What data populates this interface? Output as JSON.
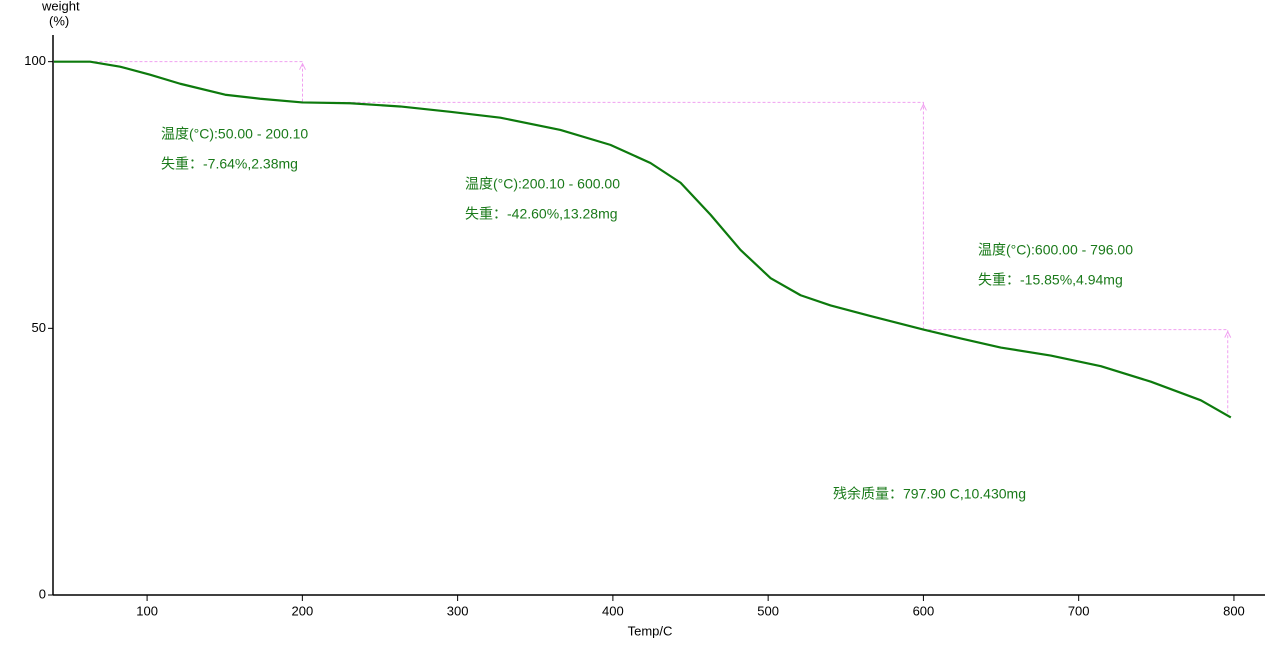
{
  "chart_data": {
    "type": "line",
    "ylabel": [
      "weight",
      "(%)"
    ],
    "xlabel": "Temp/C",
    "x": [
      40,
      63.3,
      82.6,
      101.9,
      121.3,
      150.3,
      172.8,
      200,
      230.8,
      263,
      295.3,
      327.5,
      366.2,
      398.4,
      424.2,
      443.6,
      462.9,
      482.2,
      501.6,
      520.9,
      540.2,
      566,
      600,
      624,
      649.8,
      682,
      714.3,
      746.5,
      778.7,
      798
    ],
    "series": [
      {
        "color": "#0d7a0d",
        "values": [
          100,
          100,
          99.06,
          97.56,
          95.86,
          93.8,
          93.05,
          92.36,
          92.2,
          91.6,
          90.6,
          89.5,
          87.2,
          84.4,
          81,
          77.3,
          71.3,
          64.7,
          59.4,
          56.2,
          54.3,
          52.3,
          49.76,
          48.1,
          46.4,
          44.9,
          42.9,
          40,
          36.5,
          33.3
        ]
      }
    ],
    "xlim": [
      39.4,
      820
    ],
    "ylim": [
      0,
      105
    ],
    "xticks": [
      100,
      200,
      300,
      400,
      500,
      600,
      700,
      800
    ],
    "yticks": [
      0,
      50,
      100
    ],
    "step_color": "#f0a0f0",
    "annotations": [
      {
        "lines": [
          "温度(°C):50.00 - 200.10",
          "失重：-7.64%,2.38mg"
        ],
        "x": [
          50,
          200.1
        ],
        "y": [
          100,
          92.36
        ]
      },
      {
        "lines": [
          "温度(°C):200.10 - 600.00",
          "失重：-42.60%,13.28mg"
        ],
        "x": [
          200.1,
          600
        ],
        "y": [
          92.36,
          49.76
        ]
      },
      {
        "lines": [
          "温度(°C):600.00 - 796.00",
          "失重：-15.85%,4.94mg"
        ],
        "x": [
          600,
          796
        ],
        "y": [
          49.76,
          33.91
        ]
      }
    ],
    "residual": "残余质量：797.90 C,10.430mg"
  }
}
